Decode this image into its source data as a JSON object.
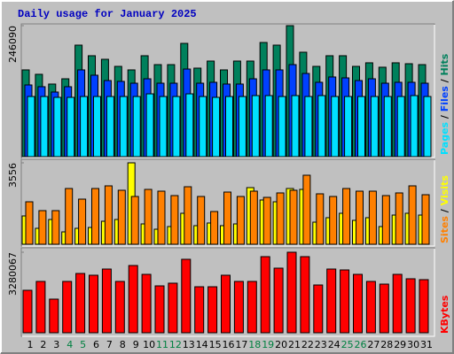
{
  "chart_data": {
    "type": "bar",
    "title": "Daily usage for January 2025",
    "legend_separator": " / ",
    "categories": [
      "1",
      "2",
      "3",
      "4",
      "5",
      "6",
      "7",
      "8",
      "9",
      "10",
      "11",
      "12",
      "13",
      "14",
      "15",
      "16",
      "17",
      "18",
      "19",
      "20",
      "21",
      "22",
      "23",
      "24",
      "25",
      "26",
      "27",
      "28",
      "29",
      "30",
      "31"
    ],
    "category_colors": [
      "#000000",
      "#000000",
      "#000000",
      "#008040",
      "#008040",
      "#000000",
      "#000000",
      "#000000",
      "#000000",
      "#000000",
      "#008040",
      "#008040",
      "#000000",
      "#000000",
      "#000000",
      "#000000",
      "#000000",
      "#008040",
      "#008040",
      "#000000",
      "#000000",
      "#000000",
      "#000000",
      "#000000",
      "#008040",
      "#008040",
      "#000000",
      "#000000",
      "#000000",
      "#000000",
      "#000000"
    ],
    "panels": [
      {
        "ylim": [
          0,
          246090
        ],
        "yticks": [
          246090
        ],
        "series": [
          {
            "name": "Hits",
            "color": "#00805c",
            "values": [
              163000,
              154700,
              136400,
              146300,
              209500,
              189600,
              182900,
              169600,
              163000,
              189600,
              172900,
              172900,
              212800,
              166300,
              179600,
              163000,
              179600,
              179600,
              214500,
              209500,
              246090,
              196200,
              169600,
              189600,
              189600,
              169600,
              176300,
              168000,
              176300,
              174600,
              172900
            ]
          },
          {
            "name": "Files",
            "color": "#0040ff",
            "values": [
              134700,
              131400,
              121400,
              131400,
              163000,
              153000,
              143000,
              141400,
              138000,
              146300,
              138000,
              138000,
              164600,
              138000,
              139700,
              136400,
              136400,
              146300,
              163000,
              163000,
              172900,
              156300,
              139700,
              149700,
              148000,
              143000,
              146300,
              138000,
              139700,
              139700,
              138000
            ]
          },
          {
            "name": "Pages",
            "color": "#00e0ff",
            "values": [
              113000,
              113000,
              111400,
              111400,
              113000,
              113000,
              113000,
              113000,
              113000,
              118000,
              113000,
              113000,
              118000,
              113000,
              111400,
              113000,
              113000,
              114700,
              114700,
              113000,
              114700,
              113000,
              114700,
              113000,
              113000,
              113000,
              113000,
              113000,
              113000,
              114700,
              113000
            ]
          }
        ]
      },
      {
        "ylim": [
          0,
          3556
        ],
        "yticks": [
          3556
        ],
        "series": [
          {
            "name": "Visits",
            "color": "#ffff00",
            "values": [
              1237,
              696,
              1082,
              541,
              696,
              734,
              1005,
              1082,
              3556,
              889,
              657,
              773,
              1353,
              812,
              928,
              812,
              889,
              2474,
              1933,
              1855,
              2435,
              2396,
              966,
              1160,
              1353,
              1044,
              1160,
              773,
              1275,
              1353,
              1275
            ]
          },
          {
            "name": "Sites",
            "color": "#ff8000",
            "values": [
              1855,
              1469,
              1469,
              2435,
              1971,
              2435,
              2551,
              2358,
              2087,
              2396,
              2319,
              2126,
              2512,
              2087,
              1430,
              2280,
              2087,
              2319,
              2048,
              2242,
              2358,
              3015,
              2203,
              2087,
              2435,
              2319,
              2319,
              2126,
              2242,
              2551,
              2164
            ]
          }
        ]
      },
      {
        "ylim": [
          0,
          3280067
        ],
        "yticks": [
          3280067
        ],
        "series": [
          {
            "name": "KBytes",
            "color": "#ff0000",
            "values": [
              1730000,
              2091000,
              1370000,
              2091000,
              2415000,
              2343000,
              2595000,
              2091000,
              2739000,
              2379000,
              1910000,
              2019000,
              2992000,
              1874000,
              1874000,
              2343000,
              2091000,
              2091000,
              3100000,
              2631000,
              3280067,
              3100000,
              1946000,
              2595000,
              2559000,
              2379000,
              2091000,
              1982000,
              2379000,
              2199000,
              2163000
            ]
          }
        ]
      }
    ]
  }
}
